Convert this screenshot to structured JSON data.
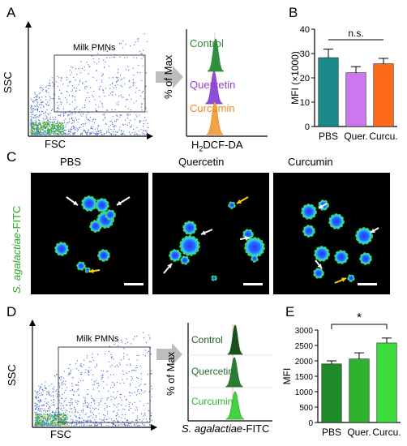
{
  "panels": {
    "A": {
      "letter": "A",
      "gate_label": "Milk PMNs",
      "y_axis": "SSC",
      "x_axis": "FSC",
      "hist_y_axis": "% of Max",
      "hist_x_axis_main": "H",
      "hist_x_axis_sub": "2",
      "hist_x_axis_rest": "DCF-DA",
      "hist_rows": [
        {
          "label": "Control",
          "color": "#2e8b3a",
          "fill": "#2f8f3f"
        },
        {
          "label": "Quercetin",
          "color": "#9b3bd0",
          "fill": "#8a4fd6"
        },
        {
          "label": "Curcumin",
          "color": "#f08a1c",
          "fill": "#f3a347"
        }
      ]
    },
    "B": {
      "letter": "B",
      "sig": "n.s."
    },
    "C": {
      "letter": "C",
      "y_label_italic": "S. agalactiae",
      "y_label_rest": "-FITC",
      "columns": [
        "PBS",
        "Quercetin",
        "Curcumin"
      ]
    },
    "D": {
      "letter": "D",
      "gate_label": "Milk PMNs",
      "y_axis": "SSC",
      "x_axis": "FSC",
      "hist_y_axis": "% of Max",
      "hist_x_axis_italic": "S. agalactiae",
      "hist_x_axis_rest": "-FITC",
      "hist_rows": [
        {
          "label": "Control",
          "color": "#1f5e1f",
          "fill": "#1c4d1c"
        },
        {
          "label": "Quercetin",
          "color": "#1f6e2a",
          "fill": "#2a7e33"
        },
        {
          "label": "Curcumin",
          "color": "#2db52d",
          "fill": "#44d144"
        }
      ]
    },
    "E": {
      "letter": "E",
      "sig": "*"
    }
  },
  "chart_data": [
    {
      "type": "bar",
      "panel": "B",
      "categories": [
        "PBS",
        "Quer.",
        "Curcu."
      ],
      "values": [
        28.3,
        22.1,
        25.8
      ],
      "errors": [
        3.5,
        2.5,
        2.2
      ],
      "colors": [
        "#1a8a8a",
        "#cc77ee",
        "#ff6a1a"
      ],
      "ylabel": "MFI (×1000)",
      "ylim": [
        0,
        40
      ],
      "yticks": [
        0,
        10,
        20,
        30,
        40
      ],
      "annotation": "n.s."
    },
    {
      "type": "bar",
      "panel": "E",
      "categories": [
        "PBS",
        "Quer.",
        "Curcu."
      ],
      "values": [
        1900,
        2060,
        2580
      ],
      "errors": [
        100,
        200,
        160
      ],
      "colors": [
        "#1f8a2a",
        "#2fb32f",
        "#3ddc3d"
      ],
      "ylabel": "MFI",
      "ylim": [
        0,
        3000
      ],
      "yticks": [
        0,
        500,
        1000,
        1500,
        2000,
        2500,
        3000
      ],
      "annotation": "*"
    }
  ]
}
